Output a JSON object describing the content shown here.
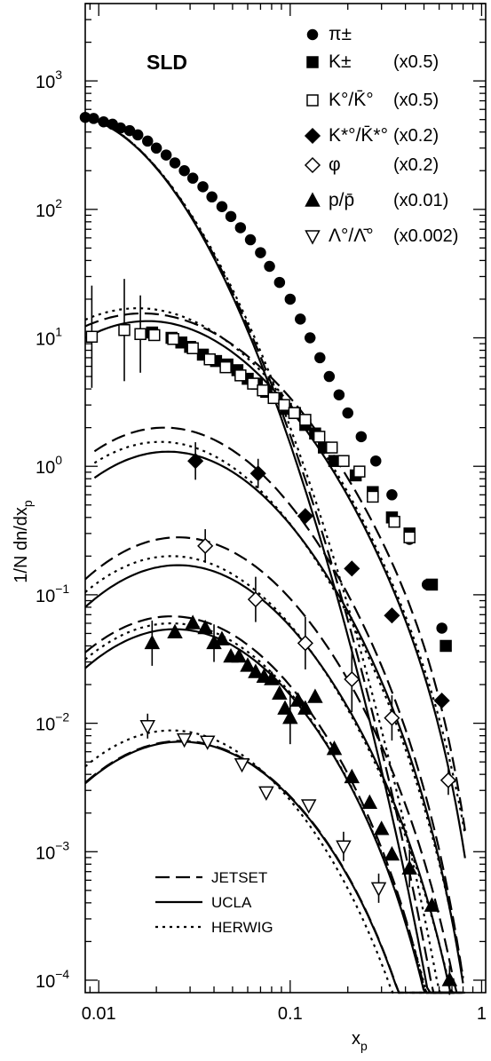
{
  "chart_data": {
    "type": "scatter",
    "title": "SLD",
    "xlabel_main": "x",
    "xlabel_sub": "p",
    "ylabel": "1/N dn/dx",
    "ylabel_sub": "p",
    "x_scale": "log",
    "y_scale": "log",
    "xlim": [
      0.0085,
      1.05
    ],
    "ylim": [
      8e-05,
      4000
    ],
    "x_ticks": [
      {
        "v": 0.01,
        "label": "0.01"
      },
      {
        "v": 0.1,
        "label": "0.1"
      },
      {
        "v": 1,
        "label": "1"
      }
    ],
    "y_ticks": [
      {
        "v": 1000,
        "mant": "10",
        "exp": "3"
      },
      {
        "v": 100,
        "mant": "10",
        "exp": "2"
      },
      {
        "v": 10,
        "mant": "10",
        "exp": "1"
      },
      {
        "v": 1,
        "mant": "10",
        "exp": "0"
      },
      {
        "v": 0.1,
        "mant": "10",
        "exp": "−1"
      },
      {
        "v": 0.01,
        "mant": "10",
        "exp": "−2"
      },
      {
        "v": 0.001,
        "mant": "10",
        "exp": "−3"
      },
      {
        "v": 0.0001,
        "mant": "10",
        "exp": "−4"
      }
    ],
    "legend_placement": "top-right",
    "series": [
      {
        "name": "π±",
        "scale": "",
        "marker": "circle",
        "filled": true,
        "points": [
          [
            0.0085,
            520
          ],
          [
            0.0094,
            510
          ],
          [
            0.0106,
            480
          ],
          [
            0.0118,
            460
          ],
          [
            0.013,
            430
          ],
          [
            0.0145,
            410
          ],
          [
            0.016,
            380
          ],
          [
            0.018,
            340
          ],
          [
            0.02,
            300
          ],
          [
            0.0225,
            265
          ],
          [
            0.025,
            230
          ],
          [
            0.028,
            200
          ],
          [
            0.031,
            175
          ],
          [
            0.035,
            150
          ],
          [
            0.039,
            125
          ],
          [
            0.044,
            105
          ],
          [
            0.049,
            88
          ],
          [
            0.055,
            72
          ],
          [
            0.062,
            58
          ],
          [
            0.07,
            46
          ],
          [
            0.078,
            36
          ],
          [
            0.088,
            27
          ],
          [
            0.1,
            20
          ],
          [
            0.113,
            14
          ],
          [
            0.127,
            10
          ],
          [
            0.143,
            7
          ],
          [
            0.16,
            5
          ],
          [
            0.18,
            3.6
          ],
          [
            0.2,
            2.6
          ],
          [
            0.235,
            1.7
          ],
          [
            0.28,
            1.1
          ],
          [
            0.34,
            0.6
          ],
          [
            0.42,
            0.27
          ],
          [
            0.52,
            0.12
          ],
          [
            0.62,
            0.055
          ]
        ]
      },
      {
        "name": "K±",
        "scale": "(x0.5)",
        "marker": "square",
        "filled": true,
        "points": [
          [
            0.019,
            11
          ],
          [
            0.024,
            10
          ],
          [
            0.027,
            9.2
          ],
          [
            0.03,
            8.5
          ],
          [
            0.035,
            7.4
          ],
          [
            0.041,
            6.6
          ],
          [
            0.047,
            6.2
          ],
          [
            0.053,
            5.6
          ],
          [
            0.06,
            4.8
          ],
          [
            0.067,
            4.4
          ],
          [
            0.075,
            3.8
          ],
          [
            0.085,
            3.4
          ],
          [
            0.095,
            2.8
          ],
          [
            0.106,
            2.6
          ],
          [
            0.12,
            2.1
          ],
          [
            0.135,
            1.8
          ],
          [
            0.15,
            1.4
          ],
          [
            0.17,
            1.1
          ],
          [
            0.22,
            0.85
          ],
          [
            0.27,
            0.63
          ],
          [
            0.34,
            0.4
          ],
          [
            0.42,
            0.3
          ],
          [
            0.55,
            0.12
          ],
          [
            0.65,
            0.04
          ]
        ]
      },
      {
        "name": "K°/K̄°",
        "scale": "(x0.5)",
        "marker": "square",
        "filled": false,
        "points": [
          [
            0.0092,
            10.2
          ],
          [
            0.0136,
            11.5
          ],
          [
            0.0165,
            10.7
          ],
          [
            0.0195,
            10.5
          ],
          [
            0.0245,
            9.8
          ],
          [
            0.031,
            8.3
          ],
          [
            0.038,
            6.8
          ],
          [
            0.046,
            5.9
          ],
          [
            0.055,
            5.1
          ],
          [
            0.064,
            4.4
          ],
          [
            0.072,
            3.9
          ],
          [
            0.082,
            3.4
          ],
          [
            0.093,
            3.0
          ],
          [
            0.105,
            2.6
          ],
          [
            0.12,
            2.3
          ],
          [
            0.142,
            1.7
          ],
          [
            0.165,
            1.4
          ],
          [
            0.19,
            1.1
          ],
          [
            0.23,
            0.91
          ],
          [
            0.27,
            0.58
          ],
          [
            0.35,
            0.37
          ],
          [
            0.42,
            0.28
          ]
        ],
        "err": [
          [
            0.0092,
            2.5
          ],
          [
            0.0136,
            2.5
          ],
          [
            0.0165,
            2.0
          ]
        ]
      },
      {
        "name": "K*°/K̄*°",
        "scale": "(x0.2)",
        "marker": "diamond",
        "filled": true,
        "points": [
          [
            0.032,
            1.1
          ],
          [
            0.068,
            0.88
          ],
          [
            0.12,
            0.41
          ],
          [
            0.21,
            0.16
          ],
          [
            0.34,
            0.069
          ],
          [
            0.62,
            0.015
          ]
        ],
        "err": [
          [
            0.032,
            1.4
          ],
          [
            0.068,
            1.3
          ]
        ]
      },
      {
        "name": "φ",
        "scale": "(x0.2)",
        "marker": "diamond",
        "filled": false,
        "points": [
          [
            0.036,
            0.24
          ],
          [
            0.066,
            0.092
          ],
          [
            0.12,
            0.042
          ],
          [
            0.21,
            0.022
          ],
          [
            0.34,
            0.011
          ],
          [
            0.67,
            0.0036
          ]
        ],
        "err": [
          [
            0.036,
            1.35
          ],
          [
            0.066,
            1.5
          ],
          [
            0.12,
            1.6
          ],
          [
            0.21,
            1.8
          ],
          [
            0.34,
            1.5
          ],
          [
            0.67,
            1.3
          ]
        ]
      },
      {
        "name": "p/p̄",
        "scale": "(x0.01)",
        "marker": "triangle-up",
        "filled": true,
        "points": [
          [
            0.019,
            0.042
          ],
          [
            0.025,
            0.051
          ],
          [
            0.031,
            0.06
          ],
          [
            0.036,
            0.055
          ],
          [
            0.04,
            0.042
          ],
          [
            0.044,
            0.045
          ],
          [
            0.049,
            0.033
          ],
          [
            0.054,
            0.033
          ],
          [
            0.06,
            0.028
          ],
          [
            0.066,
            0.025
          ],
          [
            0.073,
            0.023
          ],
          [
            0.08,
            0.022
          ],
          [
            0.088,
            0.017
          ],
          [
            0.094,
            0.013
          ],
          [
            0.1,
            0.011
          ],
          [
            0.11,
            0.015
          ],
          [
            0.12,
            0.013
          ],
          [
            0.135,
            0.016
          ],
          [
            0.17,
            0.0063
          ],
          [
            0.21,
            0.0038
          ],
          [
            0.26,
            0.0024
          ],
          [
            0.3,
            0.0015
          ],
          [
            0.34,
            0.00095
          ],
          [
            0.42,
            0.00074
          ],
          [
            0.55,
            0.00038
          ],
          [
            0.68,
            0.0001
          ]
        ],
        "err": [
          [
            0.019,
            1.5
          ],
          [
            0.04,
            1.4
          ],
          [
            0.1,
            1.6
          ],
          [
            0.42,
            1.4
          ],
          [
            0.68,
            1.3
          ]
        ]
      },
      {
        "name": "Λ°/Λ̄°",
        "scale": "(x0.002)",
        "marker": "triangle-down",
        "filled": false,
        "points": [
          [
            0.018,
            0.0095
          ],
          [
            0.028,
            0.0075
          ],
          [
            0.037,
            0.0072
          ],
          [
            0.056,
            0.0048
          ],
          [
            0.075,
            0.0029
          ],
          [
            0.125,
            0.0023
          ],
          [
            0.19,
            0.0011
          ],
          [
            0.29,
            0.00052
          ]
        ],
        "err": [
          [
            0.018,
            1.25
          ],
          [
            0.19,
            1.3
          ],
          [
            0.29,
            1.3
          ]
        ]
      }
    ],
    "models": [
      {
        "name": "JETSET",
        "dash": "dashed"
      },
      {
        "name": "UCLA",
        "dash": "solid"
      },
      {
        "name": "HERWIG",
        "dash": "dotted"
      }
    ]
  }
}
